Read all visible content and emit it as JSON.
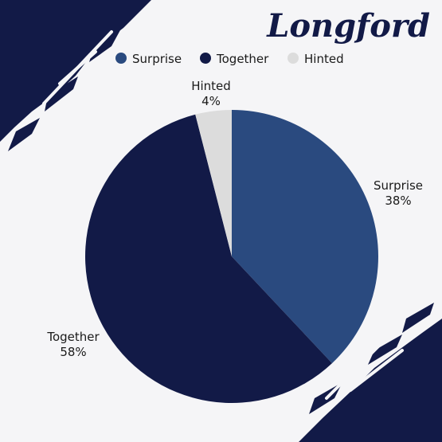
{
  "colors": {
    "background": "#f5f5f7",
    "brand": "#121a47",
    "surprise": "#2a4a7f",
    "together": "#121a47",
    "hinted": "#dcdcdc",
    "text": "#1a1a1a"
  },
  "chart_data": {
    "type": "pie",
    "title": "Longford",
    "legend_position": "top",
    "slices": [
      {
        "name": "Surprise",
        "value": 38,
        "label": "38%",
        "color": "#2a4a7f"
      },
      {
        "name": "Together",
        "value": 58,
        "label": "58%",
        "color": "#121a47"
      },
      {
        "name": "Hinted",
        "value": 4,
        "label": "4%",
        "color": "#dcdcdc"
      }
    ]
  }
}
